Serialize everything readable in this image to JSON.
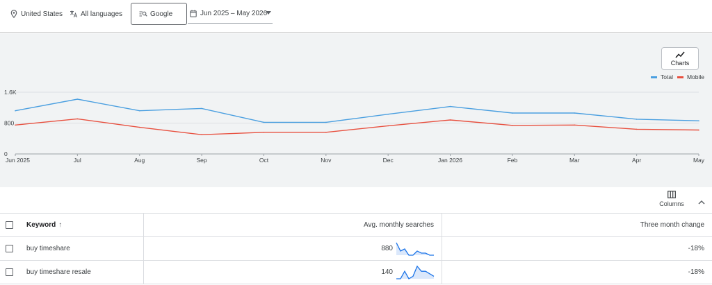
{
  "filters": {
    "location": "United States",
    "language": "All languages",
    "network": "Google",
    "date_range": "Jun 2025 – May 2026"
  },
  "charts_button": {
    "label": "Charts"
  },
  "legend": [
    {
      "name": "Total",
      "color": "#4a9fe0"
    },
    {
      "name": "Mobile",
      "color": "#e8503f"
    }
  ],
  "chart_data": {
    "type": "line",
    "x": [
      "Jun 2025",
      "Jul",
      "Aug",
      "Sep",
      "Oct",
      "Nov",
      "Dec",
      "Jan 2026",
      "Feb",
      "Mar",
      "Apr",
      "May"
    ],
    "series": [
      {
        "name": "Total",
        "color": "#4a9fe0",
        "values": [
          1120,
          1420,
          1120,
          1180,
          820,
          820,
          1030,
          1230,
          1060,
          1060,
          900,
          860
        ]
      },
      {
        "name": "Mobile",
        "color": "#e8503f",
        "values": [
          750,
          910,
          690,
          500,
          560,
          560,
          730,
          880,
          740,
          750,
          640,
          620
        ]
      }
    ],
    "yticks": [
      "0",
      "800",
      "1.6K"
    ],
    "ylim": [
      0,
      1600
    ],
    "grid": true,
    "legend_position": "top-right"
  },
  "table": {
    "columns_label": "Columns",
    "headers": {
      "keyword": "Keyword",
      "avg_searches": "Avg. monthly searches",
      "three_month": "Three month change"
    },
    "rows": [
      {
        "keyword": "buy timeshare",
        "avg": "880",
        "change": "-18%",
        "trend": [
          7,
          3,
          4,
          1,
          1,
          3,
          2,
          2,
          1,
          1
        ]
      },
      {
        "keyword": "buy timeshare resale",
        "avg": "140",
        "change": "-18%",
        "trend": [
          1,
          1,
          4,
          1,
          2,
          6,
          4,
          4,
          3,
          2
        ]
      }
    ]
  }
}
